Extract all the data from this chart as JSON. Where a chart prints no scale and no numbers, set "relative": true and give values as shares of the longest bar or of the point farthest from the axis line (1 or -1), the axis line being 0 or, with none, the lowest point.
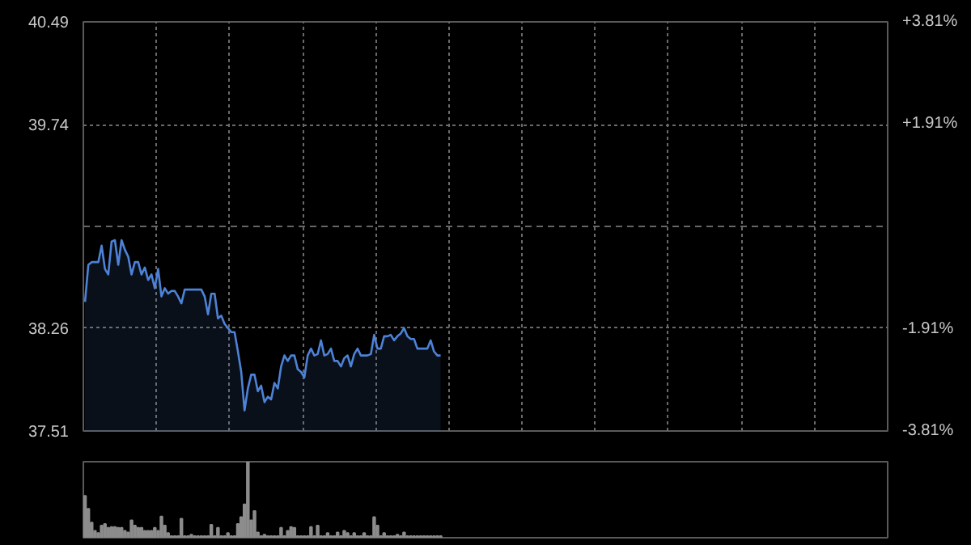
{
  "chart_data": [
    {
      "type": "area",
      "categories": [
        null,
        null,
        null,
        null,
        null,
        null,
        null,
        null,
        null,
        null,
        null,
        null,
        null,
        null,
        null,
        null,
        null,
        null,
        null,
        null,
        null,
        null,
        null,
        null,
        null,
        null,
        null,
        null,
        null,
        null,
        null,
        null,
        null,
        null,
        null,
        null,
        null,
        null,
        null,
        null,
        null,
        null,
        null,
        null,
        null,
        null,
        null,
        null,
        null,
        null,
        null,
        null,
        null,
        null,
        null,
        null,
        null,
        null,
        null,
        null,
        null,
        null,
        null,
        null,
        null,
        null,
        null,
        null,
        null,
        null,
        null,
        null,
        null,
        null,
        null,
        null,
        null,
        null,
        null,
        null,
        null,
        null,
        null,
        null,
        null,
        null,
        null,
        null,
        null,
        null,
        null,
        null,
        null,
        null,
        null,
        null,
        null,
        null,
        null,
        null,
        null,
        null,
        null,
        null,
        null,
        null,
        null,
        null,
        null,
        null,
        null,
        null,
        null,
        null,
        null,
        null,
        null,
        null,
        null,
        null,
        null,
        null,
        null,
        null,
        null,
        null,
        null,
        null,
        null,
        null,
        null,
        null,
        null,
        null,
        null,
        null,
        null,
        null,
        null,
        null,
        null,
        null,
        null,
        null,
        null,
        null,
        null,
        null,
        null,
        null,
        null,
        null,
        null,
        null,
        null,
        null,
        null,
        null,
        null,
        null,
        null,
        null,
        null,
        null,
        null,
        null,
        null,
        null,
        null,
        null,
        null,
        null,
        null,
        null,
        null,
        null,
        null,
        null,
        null,
        null,
        null,
        null,
        null,
        null,
        null,
        null,
        null,
        null,
        null,
        null,
        null,
        null,
        null,
        null,
        null,
        null,
        null,
        null,
        null,
        null,
        null,
        null,
        null,
        null,
        null,
        null,
        null,
        null,
        null,
        null,
        null,
        null,
        null,
        null,
        null,
        null,
        null,
        null,
        null,
        null,
        null,
        null,
        null,
        null,
        null,
        null,
        null,
        null,
        null,
        null,
        null,
        null,
        null,
        null,
        null,
        null,
        null,
        null,
        null,
        null,
        null,
        null
      ],
      "ylim": [
        37.51,
        40.49
      ],
      "yticks": [
        37.51,
        38.26,
        39.74,
        40.49
      ],
      "y2lim": [
        -3.81,
        3.81
      ],
      "y2ticks": [
        {
          "value": -3.81,
          "label": "-3.81%"
        },
        {
          "value": -1.91,
          "label": "-1.91%"
        },
        {
          "value": 1.91,
          "label": "+1.91%"
        },
        {
          "value": 3.81,
          "label": "+3.81%"
        }
      ],
      "ref_lines": [
        {
          "axis": "y",
          "value": 39.0,
          "label": null,
          "color": "#666666",
          "line_style": "dashed"
        }
      ],
      "grid": true,
      "series": [
        {
          "color": "#4d82d6",
          "values": [
            38.45,
            38.72,
            38.74,
            38.74,
            38.74,
            38.86,
            38.69,
            38.65,
            38.89,
            38.9,
            38.72,
            38.9,
            38.83,
            38.78,
            38.65,
            38.74,
            38.74,
            38.65,
            38.7,
            38.61,
            38.65,
            38.55,
            38.69,
            38.49,
            38.55,
            38.51,
            38.53,
            38.53,
            38.49,
            38.44,
            38.54,
            38.54,
            38.54,
            38.54,
            38.54,
            38.54,
            38.49,
            38.36,
            38.51,
            38.51,
            38.33,
            38.35,
            38.29,
            38.26,
            38.23,
            38.23,
            38.09,
            37.94,
            37.66,
            37.82,
            37.92,
            37.92,
            37.8,
            37.84,
            37.72,
            37.76,
            37.74,
            37.86,
            37.82,
            37.98,
            38.06,
            38.02,
            38.06,
            38.06,
            37.96,
            37.94,
            37.9,
            38.06,
            38.11,
            38.06,
            38.07,
            38.17,
            38.06,
            38.07,
            38.11,
            38.02,
            38.02,
            37.98,
            38.04,
            38.06,
            37.98,
            38.07,
            38.11,
            38.06,
            38.06,
            38.06,
            38.07,
            38.21,
            38.11,
            38.11,
            38.2,
            38.2,
            38.21,
            38.17,
            38.2,
            38.22,
            38.26,
            38.2,
            38.18,
            38.18,
            38.11,
            38.11,
            38.11,
            38.11,
            38.17,
            38.09,
            38.06,
            38.06,
            null,
            null,
            null,
            null,
            null,
            null,
            null,
            null,
            null,
            null,
            null,
            null,
            null,
            null,
            null,
            null,
            null,
            null,
            null,
            null,
            null,
            null,
            null,
            null,
            null,
            null,
            null,
            null,
            null,
            null,
            null,
            null,
            null,
            null,
            null,
            null,
            null,
            null,
            null,
            null,
            null,
            null,
            null,
            null,
            null,
            null,
            null,
            null,
            null,
            null,
            null,
            null,
            null,
            null,
            null,
            null,
            null,
            null,
            null,
            null,
            null,
            null,
            null,
            null,
            null,
            null,
            null,
            null,
            null,
            null,
            null,
            null,
            null,
            null,
            null,
            null,
            null,
            null,
            null,
            null,
            null,
            null,
            null,
            null,
            null,
            null,
            null,
            null,
            null,
            null,
            null,
            null,
            null,
            null,
            null,
            null,
            null,
            null,
            null,
            null,
            null,
            null,
            null,
            null,
            null,
            null,
            null,
            null,
            null,
            null,
            null,
            null,
            null,
            null,
            null,
            null,
            null,
            null,
            null,
            null,
            null,
            null,
            null,
            null,
            null,
            null,
            null,
            null,
            null,
            null,
            null,
            null,
            null,
            null
          ]
        }
      ]
    },
    {
      "type": "bar",
      "relative": true,
      "color": "#8c8c8c",
      "categories": [
        null,
        null,
        null,
        null,
        null,
        null,
        null,
        null,
        null,
        null,
        null,
        null,
        null,
        null,
        null,
        null,
        null,
        null,
        null,
        null,
        null,
        null,
        null,
        null,
        null,
        null,
        null,
        null,
        null,
        null,
        null,
        null,
        null,
        null,
        null,
        null,
        null,
        null,
        null,
        null,
        null,
        null,
        null,
        null,
        null,
        null,
        null,
        null,
        null,
        null,
        null,
        null,
        null,
        null,
        null,
        null,
        null,
        null,
        null,
        null,
        null,
        null,
        null,
        null,
        null,
        null,
        null,
        null,
        null,
        null,
        null,
        null,
        null,
        null,
        null,
        null,
        null,
        null,
        null,
        null,
        null,
        null,
        null,
        null,
        null,
        null,
        null,
        null,
        null,
        null,
        null,
        null,
        null,
        null,
        null,
        null,
        null,
        null,
        null,
        null,
        null,
        null,
        null,
        null,
        null,
        null,
        null,
        null,
        null,
        null,
        null,
        null,
        null,
        null,
        null,
        null,
        null,
        null,
        null,
        null,
        null,
        null,
        null,
        null,
        null,
        null,
        null,
        null,
        null,
        null,
        null,
        null,
        null,
        null,
        null,
        null,
        null,
        null,
        null,
        null,
        null,
        null,
        null,
        null,
        null,
        null,
        null,
        null,
        null,
        null,
        null,
        null,
        null,
        null,
        null,
        null,
        null,
        null,
        null,
        null,
        null,
        null,
        null,
        null,
        null,
        null,
        null,
        null,
        null,
        null,
        null,
        null,
        null,
        null,
        null,
        null,
        null,
        null,
        null,
        null,
        null,
        null,
        null,
        null,
        null,
        null,
        null,
        null,
        null,
        null,
        null,
        null,
        null,
        null,
        null,
        null,
        null,
        null,
        null,
        null,
        null,
        null,
        null,
        null,
        null,
        null,
        null,
        null,
        null,
        null,
        null,
        null,
        null,
        null,
        null,
        null,
        null,
        null,
        null,
        null,
        null,
        null,
        null,
        null,
        null,
        null,
        null,
        null,
        null,
        null,
        null,
        null,
        null,
        null,
        null,
        null,
        null,
        null,
        null,
        null,
        null,
        null
      ],
      "values": [
        0.55,
        0.38,
        0.2,
        0.09,
        0.06,
        0.16,
        0.18,
        0.13,
        0.14,
        0.14,
        0.13,
        0.13,
        0.09,
        0.07,
        0.23,
        0.16,
        0.13,
        0.13,
        0.09,
        0.09,
        0.09,
        0.13,
        0.09,
        0.28,
        0.16,
        0.06,
        0.02,
        0.02,
        0.02,
        0.25,
        0.02,
        0.02,
        0.04,
        0.02,
        0.02,
        0.02,
        0.02,
        0.02,
        0.17,
        0.02,
        0.13,
        0.02,
        0.02,
        0.06,
        0.02,
        0.02,
        0.18,
        0.27,
        0.44,
        1,
        0.23,
        0.35,
        0.07,
        0.02,
        0.04,
        0.02,
        0.02,
        0.02,
        0.02,
        0.13,
        0.02,
        0.09,
        0.14,
        0.13,
        0.02,
        0.02,
        0.02,
        0.02,
        0.14,
        0.02,
        0.16,
        0.02,
        0.02,
        0.06,
        0.02,
        0.02,
        0.07,
        0.02,
        0.09,
        0.06,
        0.02,
        0.06,
        0.02,
        0.02,
        0.06,
        0.02,
        0.02,
        0.27,
        0.16,
        0.02,
        0.06,
        0.02,
        0.02,
        0.02,
        0.04,
        0.02,
        0.07,
        0.02,
        0.02,
        0.02,
        0.02,
        0.02,
        0.02,
        0.02,
        0.02,
        0.02,
        0.02,
        0.02,
        null,
        null,
        null,
        null,
        null,
        null,
        null,
        null,
        null,
        null,
        null,
        null,
        null,
        null,
        null,
        null,
        null,
        null,
        null,
        null,
        null,
        null,
        null,
        null,
        null,
        null,
        null,
        null,
        null,
        null,
        null,
        null,
        null,
        null,
        null,
        null,
        null,
        null,
        null,
        null,
        null,
        null,
        null,
        null,
        null,
        null,
        null,
        null,
        null,
        null,
        null,
        null,
        null,
        null,
        null,
        null,
        null,
        null,
        null,
        null,
        null,
        null,
        null,
        null,
        null,
        null,
        null,
        null,
        null,
        null,
        null,
        null,
        null,
        null,
        null,
        null,
        null,
        null,
        null,
        null,
        null,
        null,
        null,
        null,
        null,
        null,
        null,
        null,
        null,
        null,
        null,
        null,
        null,
        null,
        null,
        null,
        null,
        null,
        null,
        null,
        null,
        null,
        null,
        null,
        null,
        null,
        null,
        null,
        null,
        null,
        null,
        null,
        null,
        null,
        null,
        null,
        null,
        null,
        null,
        null,
        null,
        null,
        null,
        null,
        null,
        null,
        null,
        null,
        null,
        null,
        null,
        null,
        null,
        null
      ]
    }
  ]
}
